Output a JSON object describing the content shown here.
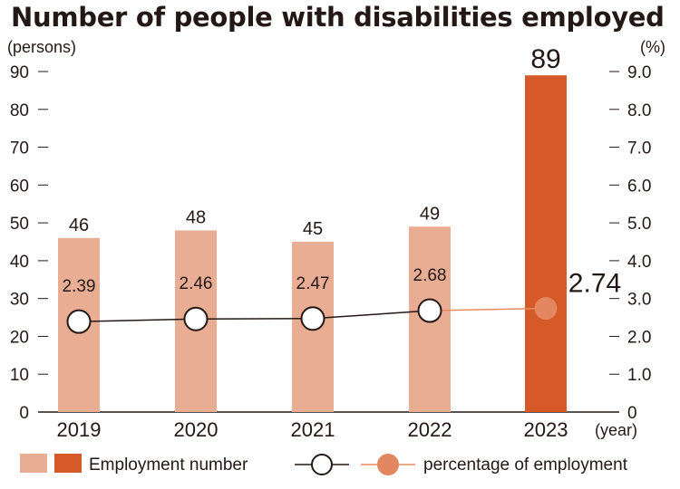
{
  "title": "Number of people with disabilities employed",
  "chart_data": {
    "type": "bar",
    "title": "Number of people with disabilities employed",
    "categories": [
      "2019",
      "2020",
      "2021",
      "2022",
      "2023"
    ],
    "series": [
      {
        "name": "Employment number",
        "values": [
          46,
          48,
          45,
          49,
          89
        ]
      },
      {
        "name": "percentage of employment",
        "values": [
          2.39,
          2.46,
          2.47,
          2.68,
          2.74
        ]
      }
    ],
    "y_left": {
      "label": "(persons)",
      "lim": [
        0,
        90
      ],
      "ticks": [
        0,
        10,
        20,
        30,
        40,
        50,
        60,
        70,
        80,
        90
      ]
    },
    "y_right": {
      "label": "(%)",
      "lim": [
        0,
        9.0
      ],
      "ticks": [
        "0",
        "1.0",
        "2.0",
        "3.0",
        "4.0",
        "5.0",
        "6.0",
        "7.0",
        "8.0",
        "9.0"
      ]
    },
    "x_unit": "(year)",
    "bar_labels": [
      "46",
      "48",
      "45",
      "49",
      "89"
    ],
    "pct_labels": [
      "2.39",
      "2.46",
      "2.47",
      "2.68",
      "2.74"
    ],
    "grid": false,
    "legend_position": "bottom",
    "colors": {
      "bar_past": "#e9ad94",
      "bar_current": "#d65a27",
      "line_past": "#231815",
      "line_current": "#e88a62",
      "marker_current": "#e38760"
    }
  },
  "legend": {
    "bars_label": "Employment number",
    "line_label": "percentage of employment"
  }
}
